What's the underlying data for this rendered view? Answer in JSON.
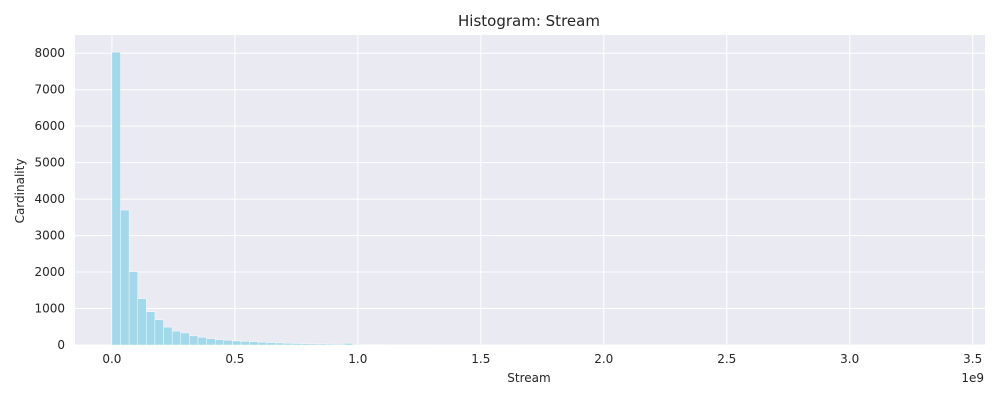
{
  "chart_data": {
    "type": "bar",
    "title": "Histogram: Stream",
    "xlabel": "Stream",
    "ylabel": "Cardinality",
    "x_offset_label": "1e9",
    "x_scale": 1000000000,
    "xlim": [
      -0.15,
      3.55
    ],
    "ylim": [
      0,
      8500
    ],
    "grid": true,
    "bin_start": 0.0,
    "bin_width": 0.035,
    "x_ticks": [
      0.0,
      0.5,
      1.0,
      1.5,
      2.0,
      2.5,
      3.0,
      3.5
    ],
    "x_tick_labels": [
      "0.0",
      "0.5",
      "1.0",
      "1.5",
      "2.0",
      "2.5",
      "3.0",
      "3.5"
    ],
    "y_ticks": [
      0,
      1000,
      2000,
      3000,
      4000,
      5000,
      6000,
      7000,
      8000
    ],
    "y_tick_labels": [
      "0",
      "1000",
      "2000",
      "3000",
      "4000",
      "5000",
      "6000",
      "7000",
      "8000"
    ],
    "values": [
      8030,
      3700,
      2010,
      1270,
      910,
      690,
      490,
      380,
      330,
      250,
      210,
      175,
      145,
      130,
      110,
      100,
      90,
      75,
      65,
      55,
      45,
      40,
      35,
      30,
      28,
      25,
      22,
      45,
      15,
      12,
      12,
      10,
      9,
      8,
      7,
      6,
      6,
      5,
      5,
      4,
      4,
      3,
      3,
      3,
      3,
      3,
      3,
      2,
      2,
      2,
      2,
      2,
      2,
      2,
      2,
      1,
      1,
      1,
      1,
      1,
      1,
      1,
      1,
      1,
      1,
      1,
      1,
      1,
      1,
      1,
      1,
      1,
      1,
      1,
      1,
      1,
      1,
      1,
      1,
      1,
      1,
      1,
      1,
      1,
      1,
      1,
      1,
      1,
      1,
      1,
      1,
      1,
      1,
      1,
      1,
      1,
      1,
      1
    ],
    "bar_color": "#a3d8ea",
    "background_color": "#eaeaf2",
    "grid_color": "#ffffff"
  }
}
